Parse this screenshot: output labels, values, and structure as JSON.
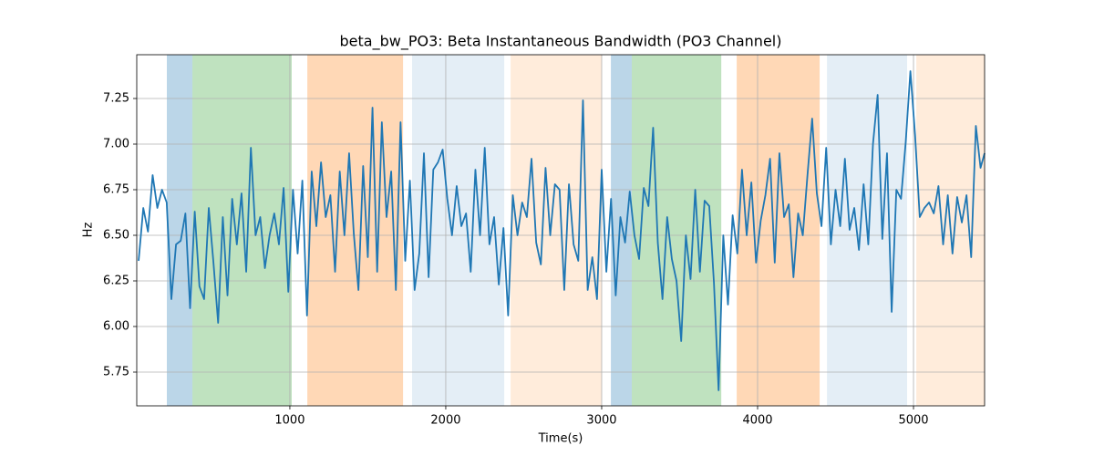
{
  "chart_data": {
    "type": "line",
    "title": "beta_bw_PO3: Beta Instantaneous Bandwidth (PO3 Channel)",
    "xlabel": "Time(s)",
    "ylabel": "Hz",
    "xlim": [
      18,
      5456
    ],
    "ylim": [
      5.565,
      7.49
    ],
    "xticks": [
      1000,
      2000,
      3000,
      4000,
      5000
    ],
    "yticks": [
      5.75,
      {
        "value": 6,
        "label": "6.00"
      },
      6.25,
      {
        "value": 6.5,
        "label": "6.50"
      },
      6.75,
      {
        "value": 7,
        "label": "7.00"
      },
      7.25
    ],
    "grid": true,
    "spans": [
      {
        "start": 211,
        "end": 375,
        "color": "#1f77b4",
        "opacity": 0.3
      },
      {
        "start": 375,
        "end": 1012,
        "color": "#2ca02c",
        "opacity": 0.3
      },
      {
        "start": 1112,
        "end": 1726,
        "color": "#ff7f0e",
        "opacity": 0.3
      },
      {
        "start": 1784,
        "end": 2375,
        "color": "#1f77b4",
        "opacity": 0.12
      },
      {
        "start": 2416,
        "end": 3000,
        "color": "#ff7f0e",
        "opacity": 0.15
      },
      {
        "start": 3059,
        "end": 3193,
        "color": "#1f77b4",
        "opacity": 0.3
      },
      {
        "start": 3193,
        "end": 3767,
        "color": "#2ca02c",
        "opacity": 0.3
      },
      {
        "start": 3866,
        "end": 4398,
        "color": "#ff7f0e",
        "opacity": 0.3
      },
      {
        "start": 4445,
        "end": 4959,
        "color": "#1f77b4",
        "opacity": 0.12
      },
      {
        "start": 5018,
        "end": 5456,
        "color": "#ff7f0e",
        "opacity": 0.15
      }
    ],
    "x": [
      30,
      60,
      90,
      120,
      150,
      180,
      210,
      240,
      270,
      300,
      330,
      360,
      390,
      420,
      450,
      480,
      510,
      540,
      570,
      600,
      630,
      660,
      690,
      720,
      750,
      780,
      810,
      840,
      870,
      900,
      930,
      960,
      990,
      1020,
      1050,
      1080,
      1110,
      1140,
      1170,
      1200,
      1230,
      1260,
      1290,
      1320,
      1350,
      1380,
      1410,
      1440,
      1470,
      1500,
      1530,
      1560,
      1590,
      1620,
      1650,
      1680,
      1710,
      1740,
      1770,
      1800,
      1830,
      1860,
      1890,
      1920,
      1950,
      1980,
      2010,
      2040,
      2070,
      2100,
      2130,
      2160,
      2190,
      2220,
      2250,
      2280,
      2310,
      2340,
      2370,
      2400,
      2430,
      2460,
      2490,
      2520,
      2550,
      2580,
      2610,
      2640,
      2670,
      2700,
      2730,
      2760,
      2790,
      2820,
      2850,
      2880,
      2910,
      2940,
      2970,
      3000,
      3030,
      3060,
      3090,
      3120,
      3150,
      3180,
      3210,
      3240,
      3270,
      3300,
      3330,
      3360,
      3390,
      3420,
      3450,
      3480,
      3510,
      3540,
      3570,
      3600,
      3630,
      3660,
      3690,
      3720,
      3750,
      3780,
      3810,
      3840,
      3870,
      3900,
      3930,
      3960,
      3990,
      4020,
      4050,
      4080,
      4110,
      4140,
      4170,
      4200,
      4230,
      4260,
      4290,
      4320,
      4350,
      4380,
      4410,
      4440,
      4470,
      4500,
      4530,
      4560,
      4590,
      4620,
      4650,
      4680,
      4710,
      4740,
      4770,
      4800,
      4830,
      4860,
      4890,
      4920,
      4950,
      4980,
      5010,
      5040,
      5070,
      5100,
      5130,
      5160,
      5190,
      5220,
      5250,
      5280,
      5310,
      5340,
      5370,
      5400,
      5430,
      5456
    ],
    "series": [
      {
        "color": "#1f77b4",
        "values": [
          6.36,
          6.65,
          6.52,
          6.83,
          6.65,
          6.75,
          6.68,
          6.15,
          6.45,
          6.47,
          6.62,
          6.1,
          6.63,
          6.22,
          6.15,
          6.65,
          6.35,
          6.02,
          6.6,
          6.17,
          6.7,
          6.45,
          6.73,
          6.3,
          6.98,
          6.5,
          6.6,
          6.32,
          6.5,
          6.62,
          6.45,
          6.76,
          6.19,
          6.75,
          6.4,
          6.8,
          6.06,
          6.85,
          6.55,
          6.9,
          6.6,
          6.72,
          6.3,
          6.85,
          6.5,
          6.95,
          6.51,
          6.2,
          6.88,
          6.38,
          7.2,
          6.3,
          7.12,
          6.6,
          6.85,
          6.2,
          7.12,
          6.36,
          6.8,
          6.2,
          6.4,
          6.95,
          6.27,
          6.86,
          6.9,
          6.97,
          6.7,
          6.5,
          6.77,
          6.55,
          6.62,
          6.3,
          6.86,
          6.5,
          6.98,
          6.45,
          6.6,
          6.23,
          6.54,
          6.06,
          6.72,
          6.5,
          6.68,
          6.6,
          6.92,
          6.46,
          6.34,
          6.87,
          6.5,
          6.78,
          6.75,
          6.2,
          6.78,
          6.45,
          6.36,
          7.24,
          6.2,
          6.38,
          6.15,
          6.86,
          6.3,
          6.7,
          6.17,
          6.6,
          6.46,
          6.74,
          6.5,
          6.37,
          6.76,
          6.66,
          7.09,
          6.46,
          6.15,
          6.6,
          6.37,
          6.25,
          5.92,
          6.5,
          6.26,
          6.75,
          6.3,
          6.69,
          6.66,
          6.24,
          5.65,
          6.5,
          6.12,
          6.61,
          6.4,
          6.86,
          6.5,
          6.79,
          6.35,
          6.58,
          6.72,
          6.92,
          6.35,
          6.95,
          6.6,
          6.67,
          6.27,
          6.62,
          6.5,
          6.83,
          7.14,
          6.73,
          6.55,
          6.98,
          6.45,
          6.75,
          6.55,
          6.92,
          6.53,
          6.65,
          6.42,
          6.78,
          6.45,
          7.0,
          7.27,
          6.48,
          6.95,
          6.08,
          6.75,
          6.7,
          7.01,
          7.4,
          7.05,
          6.6,
          6.65,
          6.68,
          6.62,
          6.77,
          6.45,
          6.72,
          6.4,
          6.71,
          6.57,
          6.72,
          6.38,
          7.1,
          6.87,
          6.95
        ]
      }
    ]
  }
}
